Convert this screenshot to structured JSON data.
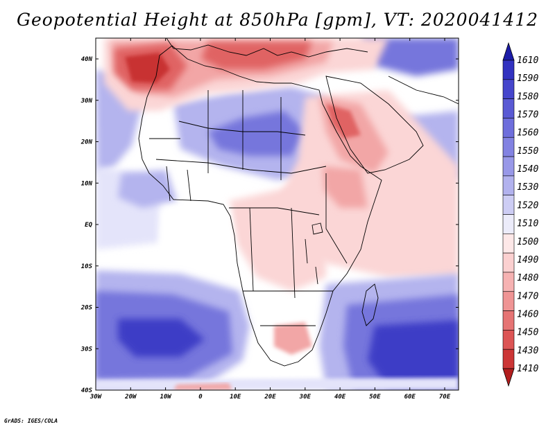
{
  "title": "Geopotential Height at 850hPa [gpm], VT: 2020041412",
  "credit": "GrADS: IGES/COLA",
  "map": {
    "lat_labels": [
      "40N",
      "30N",
      "20N",
      "10N",
      "EQ",
      "10S",
      "20S",
      "30S",
      "40S"
    ],
    "lon_labels": [
      "30W",
      "20W",
      "10W",
      "0",
      "10E",
      "20E",
      "30E",
      "40E",
      "50E",
      "60E",
      "70E"
    ]
  },
  "colorbar": {
    "levels": [
      "1610",
      "1590",
      "1580",
      "1570",
      "1560",
      "1550",
      "1540",
      "1530",
      "1520",
      "1510",
      "1500",
      "1490",
      "1480",
      "1470",
      "1460",
      "1450",
      "1430",
      "1410"
    ],
    "colors": [
      "#1c1ca8",
      "#3232c0",
      "#4646cc",
      "#5a5ad4",
      "#6e6edc",
      "#8282e2",
      "#9898e8",
      "#b2b2ee",
      "#cdcdf4",
      "#ececfa",
      "#fde8e8",
      "#fbd0d0",
      "#f6b2b2",
      "#ef9494",
      "#e67474",
      "#dc5454",
      "#cc3636",
      "#b21e1e"
    ]
  },
  "contour_colors": {
    "high_deep": "#3c3cc6",
    "high_mid": "#7676dc",
    "high_light": "#b4b4ee",
    "near_neutral": "#e4e4fa",
    "neutral": "#ffffff",
    "low_light": "#fbd6d6",
    "low_mid": "#f2a6a6",
    "low_deep": "#e06464",
    "low_strong": "#c83030"
  }
}
